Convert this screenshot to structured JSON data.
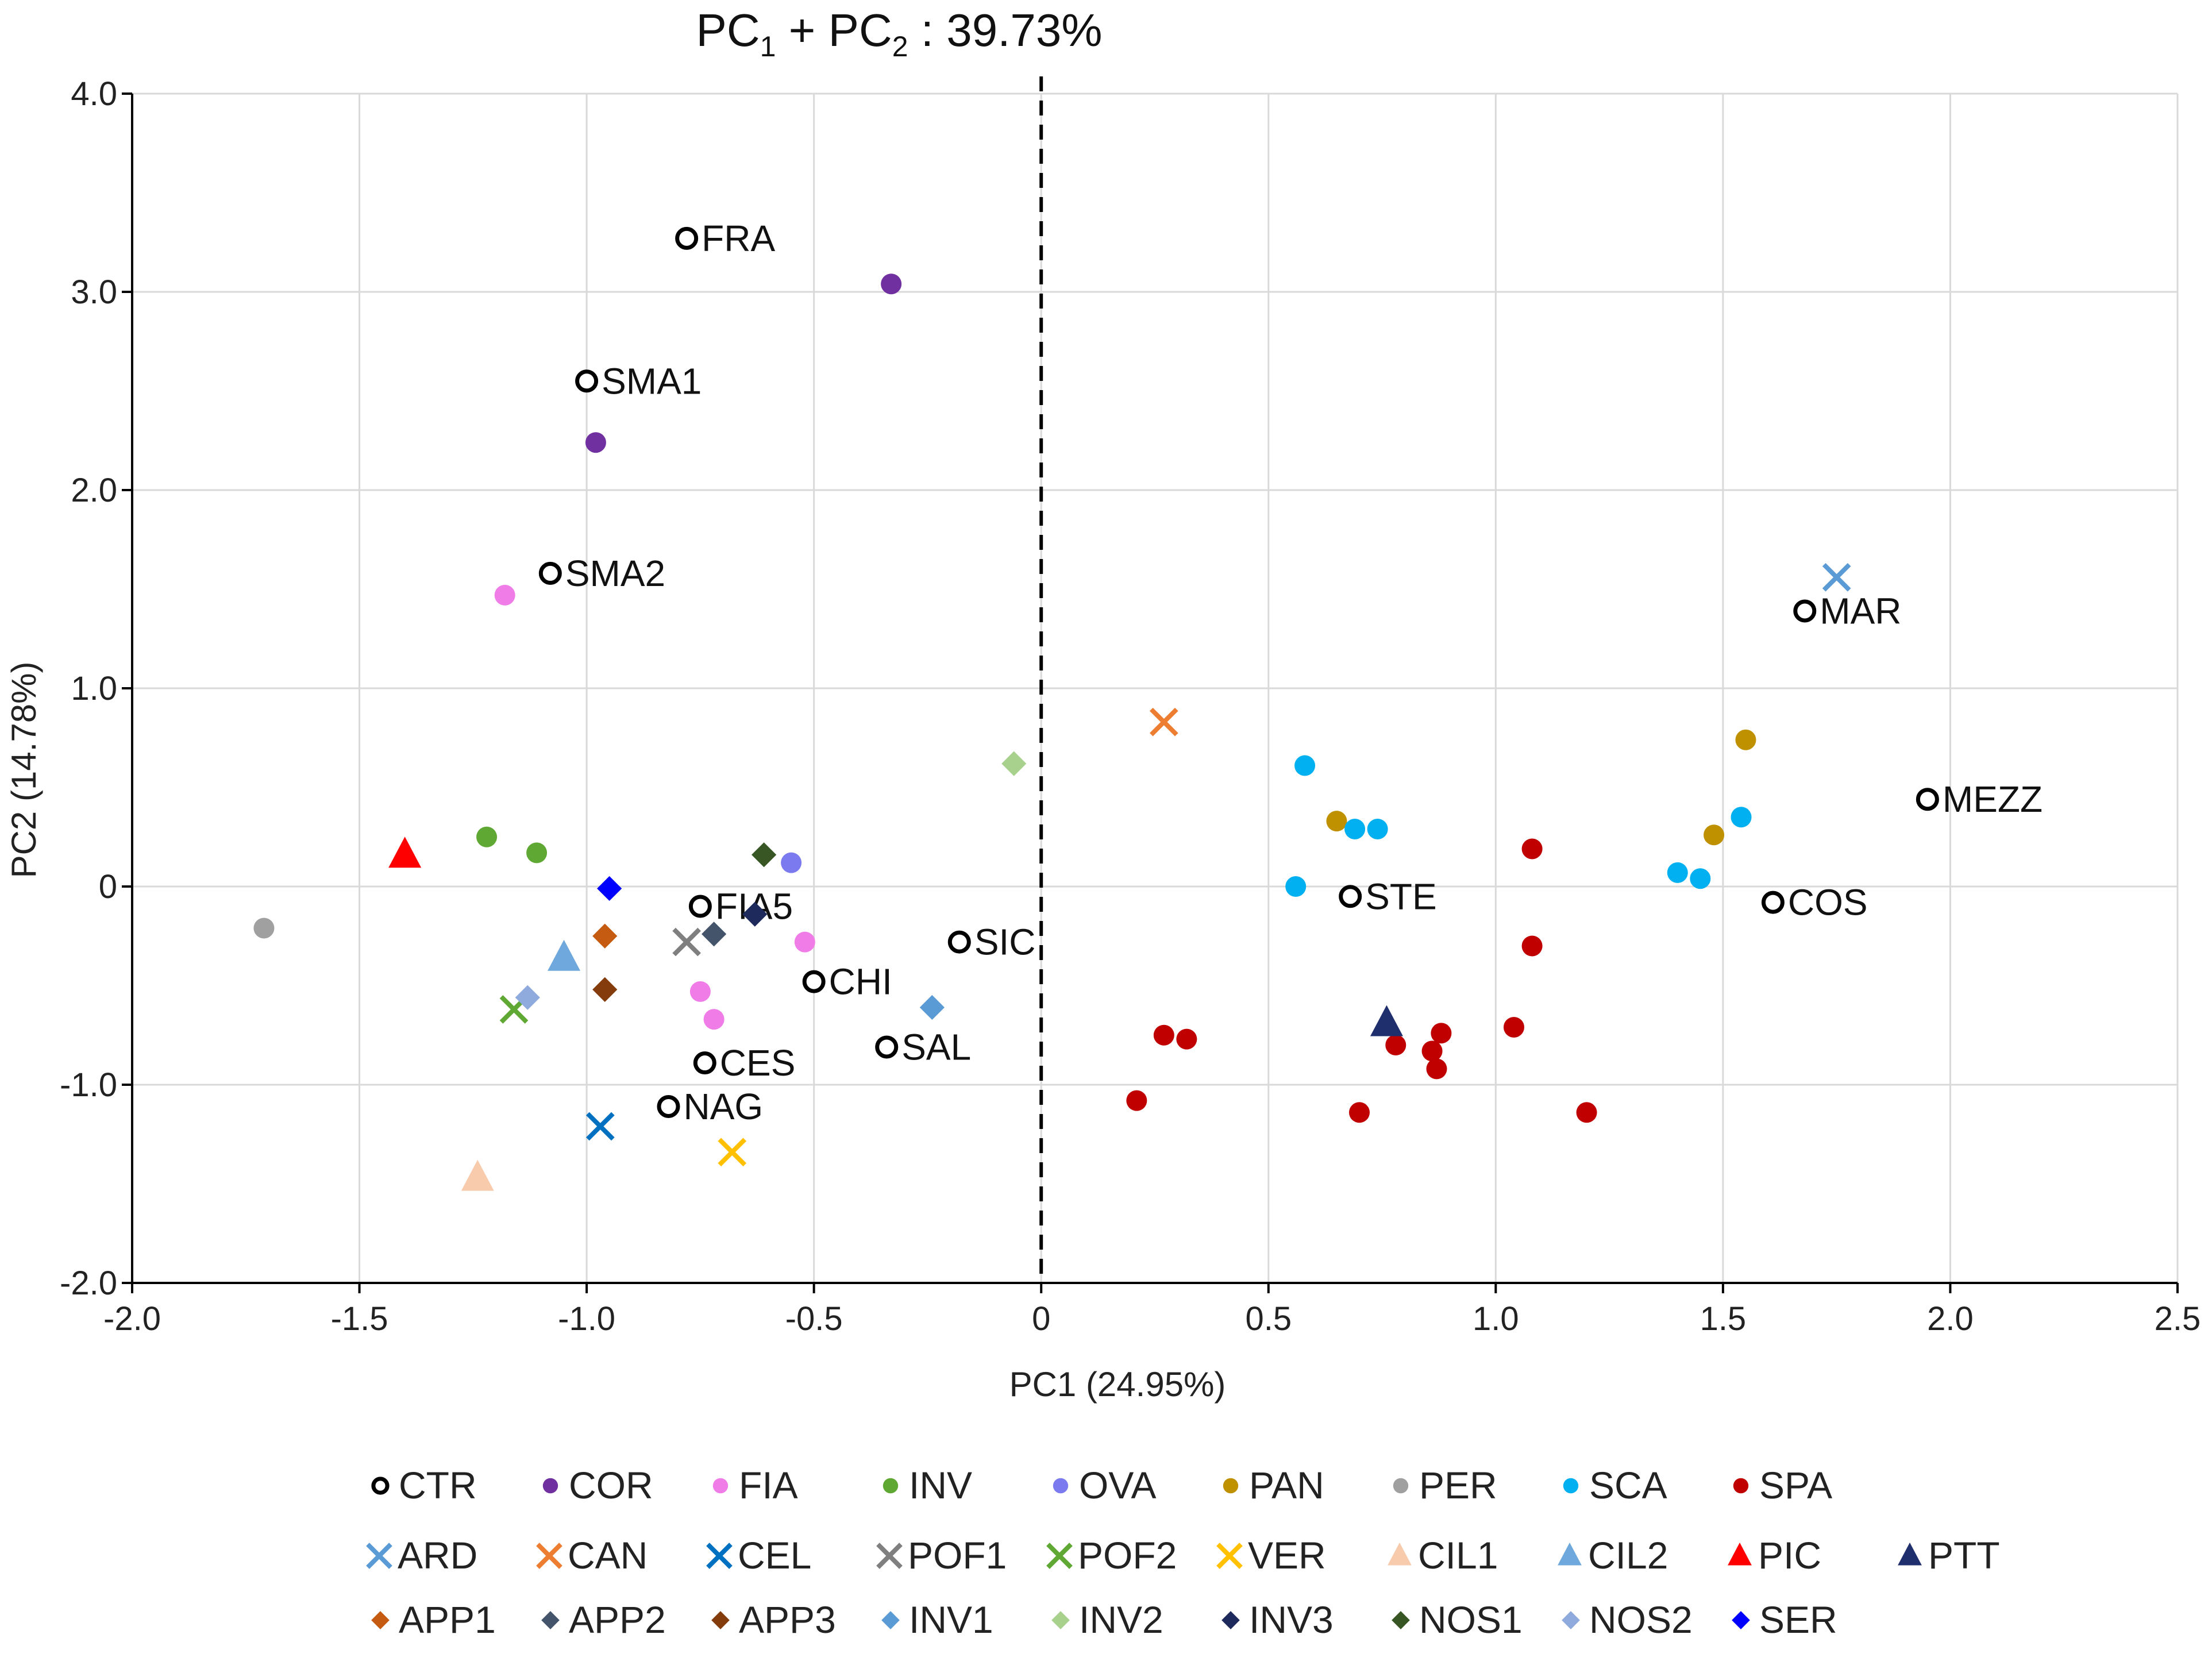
{
  "chart_data": {
    "type": "scatter",
    "title": {
      "main": "PC",
      "sub1": "1",
      "plus": " + PC",
      "sub2": "2",
      "suffix": " : 39.73%"
    },
    "xlabel": "PC1 (24.95%)",
    "ylabel": "PC2 (14.78%)",
    "xlim": [
      -2.0,
      2.5
    ],
    "ylim": [
      -2.0,
      4.0
    ],
    "xticks": [
      {
        "value": -2.0,
        "label": "-2.0"
      },
      {
        "value": -1.5,
        "label": "-1.5"
      },
      {
        "value": -1.0,
        "label": "-1.0"
      },
      {
        "value": -0.5,
        "label": "-0.5"
      },
      {
        "value": 0,
        "label": "0"
      },
      {
        "value": 0.5,
        "label": "0.5"
      },
      {
        "value": 1.0,
        "label": "1.0"
      },
      {
        "value": 1.5,
        "label": "1.5"
      },
      {
        "value": 2.0,
        "label": "2.0"
      },
      {
        "value": 2.5,
        "label": "2.5"
      }
    ],
    "yticks": [
      {
        "value": -2.0,
        "label": "-2.0"
      },
      {
        "value": -1.0,
        "label": "-1.0"
      },
      {
        "value": 0,
        "label": "0"
      },
      {
        "value": 1.0,
        "label": "1.0"
      },
      {
        "value": 2.0,
        "label": "2.0"
      },
      {
        "value": 3.0,
        "label": "3.0"
      },
      {
        "value": 4.0,
        "label": "4.0"
      }
    ],
    "grid": true,
    "reference_line": {
      "x": 0,
      "style": "dashed"
    },
    "groups": [
      {
        "name": "CTR",
        "marker": "open-circle",
        "color": "#000000"
      },
      {
        "name": "COR",
        "marker": "circle",
        "color": "#7030a0"
      },
      {
        "name": "FIA",
        "marker": "circle",
        "color": "#f07ce8"
      },
      {
        "name": "INV",
        "marker": "circle",
        "color": "#5fa833"
      },
      {
        "name": "OVA",
        "marker": "circle",
        "color": "#7b7bef"
      },
      {
        "name": "PAN",
        "marker": "circle",
        "color": "#bf9000"
      },
      {
        "name": "PER",
        "marker": "circle",
        "color": "#a0a0a0"
      },
      {
        "name": "SCA",
        "marker": "circle",
        "color": "#00b0f0"
      },
      {
        "name": "SPA",
        "marker": "circle",
        "color": "#c00000"
      },
      {
        "name": "ARD",
        "marker": "x",
        "color": "#5b9bd5"
      },
      {
        "name": "CAN",
        "marker": "x",
        "color": "#ed7d31"
      },
      {
        "name": "CEL",
        "marker": "x",
        "color": "#0070c0"
      },
      {
        "name": "POF1",
        "marker": "x",
        "color": "#7f7f7f"
      },
      {
        "name": "POF2",
        "marker": "x",
        "color": "#5fa833"
      },
      {
        "name": "VER",
        "marker": "x",
        "color": "#ffc000"
      },
      {
        "name": "CIL1",
        "marker": "triangle",
        "color": "#f8cbad"
      },
      {
        "name": "CIL2",
        "marker": "triangle",
        "color": "#6fa8dc"
      },
      {
        "name": "PIC",
        "marker": "triangle",
        "color": "#ff0000"
      },
      {
        "name": "PTT",
        "marker": "triangle",
        "color": "#1f2f6e"
      },
      {
        "name": "APP1",
        "marker": "diamond",
        "color": "#c55a11"
      },
      {
        "name": "APP2",
        "marker": "diamond",
        "color": "#44546a"
      },
      {
        "name": "APP3",
        "marker": "diamond",
        "color": "#843c0c"
      },
      {
        "name": "INV1",
        "marker": "diamond",
        "color": "#5b9bd5"
      },
      {
        "name": "INV2",
        "marker": "diamond",
        "color": "#a9d18e"
      },
      {
        "name": "INV3",
        "marker": "diamond",
        "color": "#1f2a5c"
      },
      {
        "name": "NOS1",
        "marker": "diamond",
        "color": "#375623"
      },
      {
        "name": "NOS2",
        "marker": "diamond",
        "color": "#8faadc"
      },
      {
        "name": "SER",
        "marker": "diamond",
        "color": "#0000ff"
      }
    ],
    "points": [
      {
        "group": "CTR",
        "label": "FRA",
        "x": -0.78,
        "y": 3.27
      },
      {
        "group": "CTR",
        "label": "SMA1",
        "x": -1.0,
        "y": 2.55
      },
      {
        "group": "CTR",
        "label": "SMA2",
        "x": -1.08,
        "y": 1.58
      },
      {
        "group": "CTR",
        "label": "FIA5",
        "x": -0.75,
        "y": -0.1
      },
      {
        "group": "CTR",
        "label": "SIC",
        "x": -0.18,
        "y": -0.28
      },
      {
        "group": "CTR",
        "label": "CHI",
        "x": -0.5,
        "y": -0.48
      },
      {
        "group": "CTR",
        "label": "SAL",
        "x": -0.34,
        "y": -0.81
      },
      {
        "group": "CTR",
        "label": "CES",
        "x": -0.74,
        "y": -0.89
      },
      {
        "group": "CTR",
        "label": "NAG",
        "x": -0.82,
        "y": -1.11
      },
      {
        "group": "CTR",
        "label": "MAR",
        "x": 1.68,
        "y": 1.39
      },
      {
        "group": "CTR",
        "label": "MEZZ",
        "x": 1.95,
        "y": 0.44
      },
      {
        "group": "CTR",
        "label": "COS",
        "x": 1.61,
        "y": -0.08
      },
      {
        "group": "CTR",
        "label": "STE",
        "x": 0.68,
        "y": -0.05
      },
      {
        "group": "COR",
        "x": -0.33,
        "y": 3.04
      },
      {
        "group": "COR",
        "x": -0.98,
        "y": 2.24
      },
      {
        "group": "FIA",
        "x": -1.18,
        "y": 1.47
      },
      {
        "group": "FIA",
        "x": -0.52,
        "y": -0.28
      },
      {
        "group": "FIA",
        "x": -0.75,
        "y": -0.53
      },
      {
        "group": "FIA",
        "x": -0.72,
        "y": -0.67
      },
      {
        "group": "INV",
        "x": -1.22,
        "y": 0.25
      },
      {
        "group": "INV",
        "x": -1.11,
        "y": 0.17
      },
      {
        "group": "OVA",
        "x": -0.55,
        "y": 0.12
      },
      {
        "group": "PAN",
        "x": 1.55,
        "y": 0.74
      },
      {
        "group": "PAN",
        "x": 0.65,
        "y": 0.33
      },
      {
        "group": "PAN",
        "x": 1.48,
        "y": 0.26
      },
      {
        "group": "PER",
        "x": -1.71,
        "y": -0.21
      },
      {
        "group": "SCA",
        "x": 0.58,
        "y": 0.61
      },
      {
        "group": "SCA",
        "x": 0.69,
        "y": 0.29
      },
      {
        "group": "SCA",
        "x": 0.74,
        "y": 0.29
      },
      {
        "group": "SCA",
        "x": 0.56,
        "y": 0.0
      },
      {
        "group": "SCA",
        "x": 1.54,
        "y": 0.35
      },
      {
        "group": "SCA",
        "x": 1.4,
        "y": 0.07
      },
      {
        "group": "SCA",
        "x": 1.45,
        "y": 0.04
      },
      {
        "group": "SPA",
        "x": 1.08,
        "y": 0.19
      },
      {
        "group": "SPA",
        "x": 1.08,
        "y": -0.3
      },
      {
        "group": "SPA",
        "x": 1.04,
        "y": -0.71
      },
      {
        "group": "SPA",
        "x": 0.88,
        "y": -0.74
      },
      {
        "group": "SPA",
        "x": 0.86,
        "y": -0.83
      },
      {
        "group": "SPA",
        "x": 0.87,
        "y": -0.92
      },
      {
        "group": "SPA",
        "x": 0.78,
        "y": -0.8
      },
      {
        "group": "SPA",
        "x": 0.7,
        "y": -1.14
      },
      {
        "group": "SPA",
        "x": 0.27,
        "y": -0.75
      },
      {
        "group": "SPA",
        "x": 0.32,
        "y": -0.77
      },
      {
        "group": "SPA",
        "x": 0.21,
        "y": -1.08
      },
      {
        "group": "SPA",
        "x": 1.2,
        "y": -1.14
      },
      {
        "group": "ARD",
        "x": 1.75,
        "y": 1.56
      },
      {
        "group": "CAN",
        "x": 0.27,
        "y": 0.83
      },
      {
        "group": "CEL",
        "x": -0.97,
        "y": -1.21
      },
      {
        "group": "POF1",
        "x": -0.78,
        "y": -0.28
      },
      {
        "group": "POF2",
        "x": -1.16,
        "y": -0.62
      },
      {
        "group": "VER",
        "x": -0.68,
        "y": -1.34
      },
      {
        "group": "CIL1",
        "x": -1.24,
        "y": -1.47
      },
      {
        "group": "CIL2",
        "x": -1.05,
        "y": -0.36
      },
      {
        "group": "PIC",
        "x": -1.4,
        "y": 0.16
      },
      {
        "group": "PTT",
        "x": 0.76,
        "y": -0.69
      },
      {
        "group": "APP1",
        "x": -0.96,
        "y": -0.25
      },
      {
        "group": "APP2",
        "x": -0.72,
        "y": -0.24
      },
      {
        "group": "APP3",
        "x": -0.96,
        "y": -0.52
      },
      {
        "group": "INV1",
        "x": -0.24,
        "y": -0.61
      },
      {
        "group": "INV2",
        "x": -0.06,
        "y": 0.62
      },
      {
        "group": "INV3",
        "x": -0.63,
        "y": -0.14
      },
      {
        "group": "NOS1",
        "x": -0.61,
        "y": 0.16
      },
      {
        "group": "NOS2",
        "x": -1.13,
        "y": -0.56
      },
      {
        "group": "SER",
        "x": -0.95,
        "y": -0.01
      }
    ],
    "legend": {
      "placement": "bottom",
      "rows": [
        [
          "CTR",
          "COR",
          "FIA",
          "INV",
          "OVA",
          "PAN",
          "PER",
          "SCA",
          "SPA"
        ],
        [
          "ARD",
          "CAN",
          "CEL",
          "POF1",
          "POF2",
          "VER",
          "CIL1",
          "CIL2",
          "PIC",
          "PTT"
        ],
        [
          "APP1",
          "APP2",
          "APP3",
          "INV1",
          "INV2",
          "INV3",
          "NOS1",
          "NOS2",
          "SER"
        ]
      ]
    }
  }
}
